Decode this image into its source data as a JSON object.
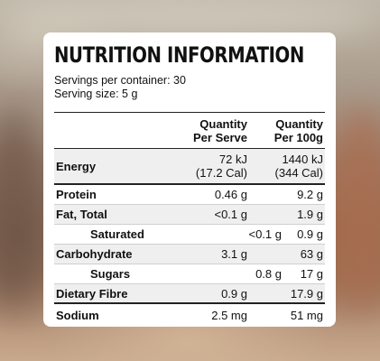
{
  "card": {
    "title": "NUTRITION INFORMATION",
    "servings_per_container": "Servings per container: 30",
    "serving_size": "Serving size: 5 g"
  },
  "table": {
    "header": {
      "per_serve_line1": "Quantity",
      "per_serve_line2": "Per Serve",
      "per_100g_line1": "Quantity",
      "per_100g_line2": "Per 100g"
    },
    "rows": [
      {
        "name": "Energy",
        "per_serve": "72 kJ",
        "per_serve_sub": "(17.2 Cal)",
        "per_100g": "1440 kJ",
        "per_100g_sub": "(344 Cal)"
      },
      {
        "name": "Protein",
        "per_serve": "0.46 g",
        "per_100g": "9.2 g"
      },
      {
        "name": "Fat, Total",
        "per_serve": "<0.1 g",
        "per_100g": "1.9 g"
      },
      {
        "name": "Saturated",
        "per_serve": "<0.1 g",
        "per_100g": "0.9 g"
      },
      {
        "name": "Carbohydrate",
        "per_serve": "3.1 g",
        "per_100g": "63 g"
      },
      {
        "name": "Sugars",
        "per_serve": "0.8 g",
        "per_100g": "17 g"
      },
      {
        "name": "Dietary Fibre",
        "per_serve": "0.9 g",
        "per_100g": "17.9 g"
      },
      {
        "name": "Sodium",
        "per_serve": "2.5 mg",
        "per_100g": "51 mg"
      }
    ]
  },
  "colors": {
    "card_background": "#ffffff",
    "row_shade": "#efefef",
    "text": "#111111"
  }
}
